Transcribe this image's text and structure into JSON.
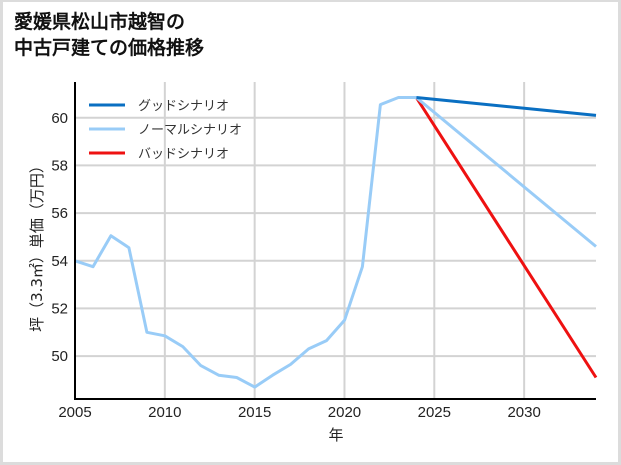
{
  "title": {
    "line1": "愛媛県松山市越智の",
    "line2": "中古戸建ての価格推移"
  },
  "colors": {
    "good": "#0a6fc2",
    "normal": "#99ccf7",
    "bad": "#ee1111",
    "grid": "#d3d3d3",
    "axis": "#000000"
  },
  "chart_data": {
    "type": "line",
    "title": "愛媛県松山市越智の中古戸建ての価格推移",
    "xlabel": "年",
    "ylabel": "坪（3.3㎡）単価（万円）",
    "xlim": [
      2005,
      2034
    ],
    "ylim": [
      48.2,
      61.5
    ],
    "x_ticks": [
      2005,
      2010,
      2015,
      2020,
      2025,
      2030
    ],
    "y_ticks": [
      50,
      52,
      54,
      56,
      58,
      60
    ],
    "grid": true,
    "legend_position": "upper left",
    "legend": [
      "グッドシナリオ",
      "ノーマルシナリオ",
      "バッドシナリオ"
    ],
    "historical": {
      "x": [
        2005,
        2006,
        2007,
        2008,
        2009,
        2010,
        2011,
        2012,
        2013,
        2014,
        2015,
        2016,
        2017,
        2018,
        2019,
        2020,
        2021,
        2022,
        2023,
        2024
      ],
      "values": [
        54.0,
        53.75,
        55.05,
        54.55,
        51.0,
        50.85,
        50.4,
        49.6,
        49.2,
        49.1,
        48.7,
        49.2,
        49.65,
        50.3,
        50.65,
        51.5,
        53.75,
        60.55,
        60.85,
        60.85
      ]
    },
    "series": [
      {
        "name": "グッドシナリオ",
        "x": [
          2024,
          2034
        ],
        "values": [
          60.85,
          60.1
        ]
      },
      {
        "name": "ノーマルシナリオ",
        "x": [
          2024,
          2034
        ],
        "values": [
          60.85,
          54.6
        ]
      },
      {
        "name": "バッドシナリオ",
        "x": [
          2024,
          2034
        ],
        "values": [
          60.85,
          49.1
        ]
      }
    ]
  },
  "legend": {
    "items": [
      {
        "label": "グッドシナリオ",
        "key": "good"
      },
      {
        "label": "ノーマルシナリオ",
        "key": "normal"
      },
      {
        "label": "バッドシナリオ",
        "key": "bad"
      }
    ]
  },
  "axes": {
    "xlabel": "年",
    "ylabel": "坪（3.3㎡）単価（万円）"
  }
}
